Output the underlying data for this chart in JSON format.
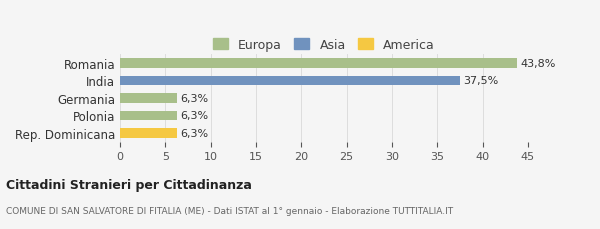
{
  "categories": [
    "Romania",
    "India",
    "Germania",
    "Polonia",
    "Rep. Dominicana"
  ],
  "values": [
    43.8,
    37.5,
    6.3,
    6.3,
    6.3
  ],
  "labels": [
    "43,8%",
    "37,5%",
    "6,3%",
    "6,3%",
    "6,3%"
  ],
  "colors": [
    "#a8bf8a",
    "#7092be",
    "#a8bf8a",
    "#a8bf8a",
    "#f5c842"
  ],
  "legend_items": [
    {
      "label": "Europa",
      "color": "#a8bf8a"
    },
    {
      "label": "Asia",
      "color": "#7092be"
    },
    {
      "label": "America",
      "color": "#f5c842"
    }
  ],
  "xlim": [
    0,
    45
  ],
  "xticks": [
    0,
    5,
    10,
    15,
    20,
    25,
    30,
    35,
    40,
    45
  ],
  "title_bold": "Cittadini Stranieri per Cittadinanza",
  "subtitle": "COMUNE DI SAN SALVATORE DI FITALIA (ME) - Dati ISTAT al 1° gennaio - Elaborazione TUTTITALIA.IT",
  "bg_color": "#f5f5f5",
  "bar_height": 0.55,
  "grid_color": "#dddddd"
}
